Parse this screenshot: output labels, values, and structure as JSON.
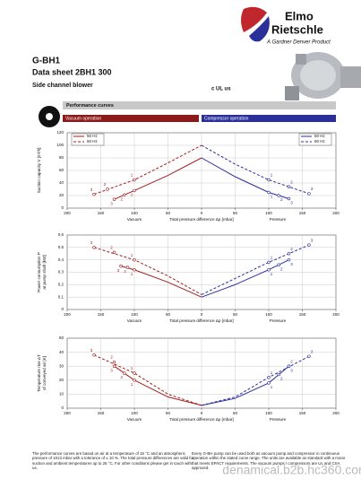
{
  "header": {
    "brand": "Elmo",
    "brand2": "Rietschle",
    "tagline": "A Gardner Denver Product",
    "model": "G-BH1",
    "title": "Data sheet 2BH1 300",
    "subtitle": "Side channel blower",
    "cert": "c UL us"
  },
  "section": "Performance curves",
  "vacuum_label": "Vacuum operation",
  "compressor_label": "Compressor operation",
  "charts": [
    {
      "type": "line",
      "y_label": [
        "Suction capacity V̇ [m³/h]"
      ],
      "x_label_left": "Vacuum",
      "x_label": "Total pressure difference Δp [mbar]",
      "x_label_right": "Pressure",
      "ylim": [
        0,
        120
      ],
      "yticks": [
        0,
        20,
        40,
        60,
        80,
        100,
        120
      ],
      "xlim": [
        -200,
        200
      ],
      "xticks": [
        {
          "value": -200,
          "label": "200"
        },
        {
          "value": -150,
          "label": "150"
        },
        {
          "value": -100,
          "label": "100"
        },
        {
          "value": -50,
          "label": "50"
        },
        0,
        50,
        100,
        150,
        200
      ],
      "grid": true,
      "legend": true,
      "series": [
        {
          "name": "50 Hz",
          "color": "#a51e1e",
          "dashed": false,
          "x": [
            -130,
            -100,
            -50,
            0
          ],
          "values": [
            14,
            28,
            52,
            80
          ],
          "markers": {
            "labels": [
              "3",
              "2",
              "1"
            ],
            "x": [
              -130,
              -115,
              -100
            ],
            "y": [
              14,
              21,
              28
            ]
          }
        },
        {
          "name": "60 Hz",
          "color": "#a51e1e",
          "dashed": true,
          "x": [
            -160,
            -100,
            -50,
            0
          ],
          "values": [
            22,
            45,
            72,
            100
          ],
          "markers": {
            "labels": [
              "3",
              "2",
              "1"
            ],
            "x": [
              -160,
              -140,
              -100
            ],
            "y": [
              22,
              30,
              45
            ]
          }
        },
        {
          "name": "50 Hz",
          "color": "#2b2f9a",
          "dashed": false,
          "x": [
            0,
            50,
            100,
            130
          ],
          "values": [
            80,
            50,
            25,
            15
          ],
          "markers": {
            "labels": [
              "1",
              "2",
              "3"
            ],
            "x": [
              100,
              115,
              130
            ],
            "y": [
              25,
              20,
              15
            ]
          }
        },
        {
          "name": "60 Hz",
          "color": "#2b2f9a",
          "dashed": true,
          "x": [
            0,
            50,
            100,
            160
          ],
          "values": [
            100,
            70,
            45,
            23
          ],
          "markers": {
            "labels": [
              "1",
              "2",
              "3"
            ],
            "x": [
              100,
              130,
              160
            ],
            "y": [
              45,
              34,
              23
            ]
          }
        }
      ]
    },
    {
      "type": "line",
      "y_label": [
        "Power consumption P",
        "at pump shaft [kW]"
      ],
      "x_label_left": "Vacuum",
      "x_label": "Total pressure difference Δp [mbar]",
      "x_label_right": "Pressure",
      "ylim": [
        0,
        0.6
      ],
      "yticks": [
        0,
        0.1,
        0.2,
        0.3,
        0.4,
        0.5,
        0.6
      ],
      "xlim": [
        -200,
        200
      ],
      "xticks": [
        {
          "value": -200,
          "label": "200"
        },
        {
          "value": -150,
          "label": "150"
        },
        {
          "value": -100,
          "label": "100"
        },
        {
          "value": -50,
          "label": "50"
        },
        0,
        50,
        100,
        150,
        200
      ],
      "grid": true,
      "legend": false,
      "series": [
        {
          "color": "#a51e1e",
          "dashed": false,
          "x": [
            -120,
            -100,
            -50,
            0
          ],
          "values": [
            0.35,
            0.32,
            0.22,
            0.1
          ],
          "markers": {
            "labels": [
              "3",
              "2",
              "1"
            ],
            "x": [
              -120,
              -110,
              -100
            ],
            "y": [
              0.35,
              0.34,
              0.32
            ]
          }
        },
        {
          "color": "#a51e1e",
          "dashed": true,
          "x": [
            -160,
            -100,
            -50,
            0
          ],
          "values": [
            0.5,
            0.4,
            0.27,
            0.12
          ],
          "markers": {
            "labels": [
              "3",
              "2",
              "1"
            ],
            "x": [
              -160,
              -130,
              -100
            ],
            "y": [
              0.5,
              0.46,
              0.4
            ]
          }
        },
        {
          "color": "#2b2f9a",
          "dashed": false,
          "x": [
            0,
            50,
            100,
            130
          ],
          "values": [
            0.1,
            0.2,
            0.32,
            0.4
          ],
          "markers": {
            "labels": [
              "1",
              "2",
              "3"
            ],
            "x": [
              100,
              115,
              130
            ],
            "y": [
              0.32,
              0.36,
              0.4
            ]
          }
        },
        {
          "color": "#2b2f9a",
          "dashed": true,
          "x": [
            0,
            50,
            100,
            160
          ],
          "values": [
            0.12,
            0.25,
            0.38,
            0.52
          ],
          "markers": {
            "labels": [
              "1",
              "2",
              "3"
            ],
            "x": [
              100,
              130,
              160
            ],
            "y": [
              0.38,
              0.45,
              0.52
            ]
          }
        }
      ]
    },
    {
      "type": "line",
      "y_label": [
        "Temperature rise ΔT",
        "of conveyed air [K]"
      ],
      "x_label_left": "Vacuum",
      "x_label": "Total pressure difference Δp [mbar]",
      "x_label_right": "Pressure",
      "ylim": [
        0,
        50
      ],
      "yticks": [
        0,
        10,
        20,
        30,
        40,
        50
      ],
      "xlim": [
        -200,
        200
      ],
      "xticks": [
        {
          "value": -200,
          "label": "200"
        },
        {
          "value": -150,
          "label": "150"
        },
        {
          "value": -100,
          "label": "100"
        },
        {
          "value": -50,
          "label": "50"
        },
        0,
        50,
        100,
        150,
        200
      ],
      "grid": true,
      "legend": false,
      "series": [
        {
          "color": "#a51e1e",
          "dashed": false,
          "x": [
            -130,
            -100,
            -50,
            0
          ],
          "values": [
            30,
            20,
            8,
            2
          ],
          "markers": {
            "labels": [
              "3",
              "2",
              "1"
            ],
            "x": [
              -130,
              -115,
              -100
            ],
            "y": [
              30,
              25,
              20
            ]
          }
        },
        {
          "color": "#a51e1e",
          "dashed": true,
          "x": [
            -160,
            -100,
            -50,
            0
          ],
          "values": [
            38,
            25,
            10,
            2
          ],
          "markers": {
            "labels": [
              "3",
              "2",
              "1"
            ],
            "x": [
              -160,
              -130,
              -100
            ],
            "y": [
              38,
              33,
              25
            ]
          }
        },
        {
          "color": "#2b2f9a",
          "dashed": false,
          "x": [
            0,
            50,
            100,
            130
          ],
          "values": [
            2,
            7,
            18,
            30
          ],
          "markers": {
            "labels": [
              "1",
              "2",
              "3"
            ],
            "x": [
              100,
              115,
              130
            ],
            "y": [
              18,
              24,
              30
            ]
          }
        },
        {
          "color": "#2b2f9a",
          "dashed": true,
          "x": [
            0,
            50,
            100,
            160
          ],
          "values": [
            2,
            8,
            22,
            37
          ],
          "markers": {
            "labels": [
              "1",
              "2",
              "3"
            ],
            "x": [
              100,
              130,
              160
            ],
            "y": [
              22,
              30,
              37
            ]
          }
        }
      ]
    }
  ],
  "footer": [
    "The performance curves are based on air at a temperature of 15 °C and an atmospheric pressure of 1013 mbar with a tolerance of ± 10 %. The total pressure differences are valid for suction and ambient temperatures up to 25 °C. For other conditions please get in touch with us.",
    "Every G-BH pump can be used both as vacuum pump and compressor in continuous operation within the stated curve range. The units are available as standard with a motor that meets EPACT requirements. The vacuum pumps / compressors are UL and CSA approved."
  ],
  "watermark": "denamical.b2b.hc360.com"
}
